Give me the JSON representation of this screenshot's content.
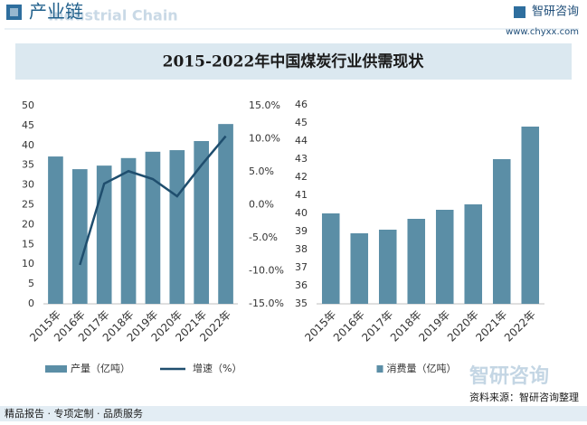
{
  "header": {
    "title": "产业链",
    "watermark": "Industrial Chain",
    "brand": "智研咨询",
    "url": "www.chyxx.com"
  },
  "chart_data": [
    {
      "type": "bar",
      "title": "2015-2022年中国煤炭行业供需现状",
      "categories": [
        "2015年",
        "2016年",
        "2017年",
        "2018年",
        "2019年",
        "2020年",
        "2021年",
        "2022年"
      ],
      "series": [
        {
          "name": "产量（亿吨）",
          "color": "#5b8ea6",
          "values": [
            37.2,
            34.0,
            34.9,
            36.8,
            38.4,
            38.8,
            41.1,
            45.4
          ]
        },
        {
          "name": "增速（%）",
          "color": "#1f4e6e",
          "type": "line",
          "axis": "y2",
          "values": [
            null,
            -9.1,
            3.2,
            5.1,
            3.9,
            1.3,
            6.0,
            10.4
          ]
        }
      ],
      "ylim": [
        0,
        50
      ],
      "yticks": [
        0,
        5,
        10,
        15,
        20,
        25,
        30,
        35,
        40,
        45,
        50
      ],
      "y2lim": [
        -15,
        15
      ],
      "y2ticks": [
        {
          "value": -15,
          "label": "-15.0%"
        },
        {
          "value": -10,
          "label": "-10.0%"
        },
        {
          "value": -5,
          "label": "-5.0%"
        },
        {
          "value": 0,
          "label": "0.0%"
        },
        {
          "value": 5,
          "label": "5.0%"
        },
        {
          "value": 10,
          "label": "10.0%"
        },
        {
          "value": 15,
          "label": "15.0%"
        }
      ]
    },
    {
      "type": "bar",
      "categories": [
        "2015年",
        "2016年",
        "2017年",
        "2018年",
        "2019年",
        "2020年",
        "2021年",
        "2022年"
      ],
      "series": [
        {
          "name": "消费量（亿吨）",
          "color": "#5b8ea6",
          "values": [
            40.0,
            38.9,
            39.1,
            39.7,
            40.2,
            40.5,
            43.0,
            44.8
          ]
        }
      ],
      "ylim": [
        35,
        46
      ],
      "yticks": [
        35,
        36,
        37,
        38,
        39,
        40,
        41,
        42,
        43,
        44,
        45,
        46
      ]
    }
  ],
  "footer": {
    "slogan": "精品报告 · 专项定制 · 品质服务",
    "logo": "智研咨询",
    "source": "资料来源：智研咨询整理"
  }
}
